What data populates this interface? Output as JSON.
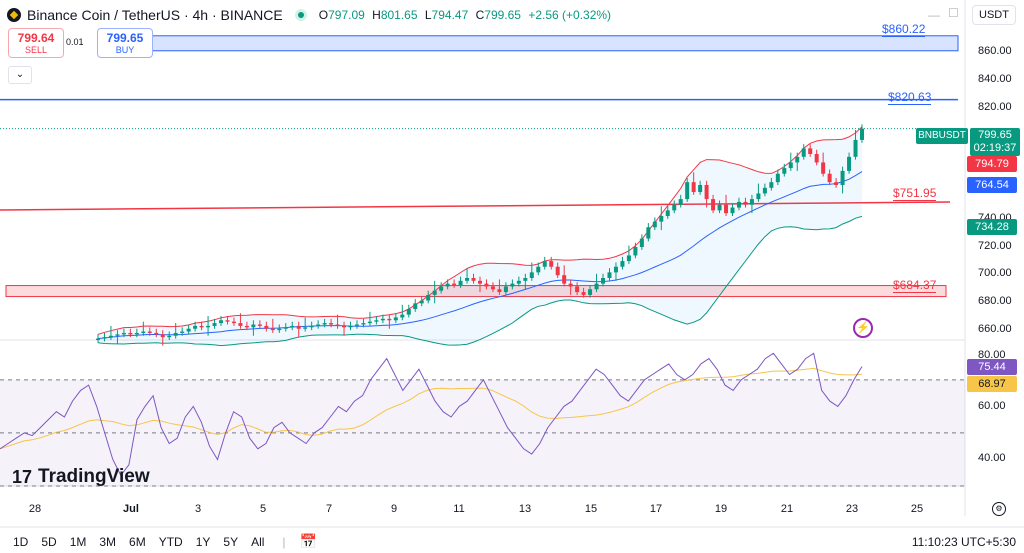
{
  "header": {
    "title": "Binance Coin / TetherUS · 4h · BINANCE",
    "ohlc": {
      "o_label": "O",
      "o": "797.09",
      "h_label": "H",
      "h": "801.65",
      "l_label": "L",
      "l": "794.47",
      "c_label": "C",
      "c": "799.65",
      "change": "+2.56 (+0.32%)"
    },
    "currency": "USDT"
  },
  "trade": {
    "sell_price": "799.64",
    "sell_label": "SELL",
    "spread": "0.01",
    "buy_price": "799.65",
    "buy_label": "BUY"
  },
  "price_axis": {
    "ticks": [
      "860.00",
      "840.00",
      "820.00",
      "800.00",
      "780.00",
      "760.00",
      "740.00",
      "720.00",
      "700.00",
      "680.00",
      "660.00"
    ],
    "symbol_badge": "BNBUSDT",
    "current_price": "799.65",
    "countdown": "02:19:37",
    "bb_upper": "794.79",
    "bb_mid": "764.54",
    "bb_lower": "734.28"
  },
  "levels": [
    {
      "label": "$860.22",
      "color": "#2962ff"
    },
    {
      "label": "$820.63",
      "color": "#2962ff"
    },
    {
      "label": "$751.95",
      "color": "#f23645"
    },
    {
      "label": "$684.37",
      "color": "#f23645"
    }
  ],
  "rsi_axis": {
    "ticks": [
      "80.00",
      "60.00",
      "40.00"
    ],
    "rsi_value": "75.44",
    "rsi_ma": "68.97"
  },
  "time_axis": [
    "28",
    "Jul",
    "3",
    "5",
    "7",
    "9",
    "11",
    "13",
    "15",
    "17",
    "19",
    "21",
    "23",
    "25"
  ],
  "bottom_bar": {
    "timeframes": [
      "1D",
      "5D",
      "1M",
      "3M",
      "6M",
      "YTD",
      "1Y",
      "5Y",
      "All"
    ],
    "clock": "11:10:23 UTC+5:30"
  },
  "logo": {
    "text": "TradingView"
  },
  "colors": {
    "up": "#089981",
    "down": "#f23645",
    "accent": "#2962ff",
    "rsi": "#7e57c2",
    "rsi_ma": "#f7c548"
  },
  "chart_data": {
    "type": "candlestick",
    "symbol": "BNBUSDT",
    "interval": "4h",
    "ylim": [
      650,
      870
    ],
    "rsi_ylim": [
      30,
      85
    ],
    "closes": [
      651,
      652,
      653,
      654,
      655,
      654,
      655,
      656,
      655,
      654,
      652,
      653,
      655,
      656,
      658,
      660,
      659,
      660,
      662,
      664,
      663,
      662,
      660,
      659,
      661,
      660,
      658,
      657,
      658,
      659,
      660,
      658,
      659,
      660,
      661,
      662,
      661,
      660,
      659,
      660,
      661,
      662,
      663,
      664,
      665,
      664,
      666,
      668,
      672,
      676,
      678,
      682,
      685,
      688,
      690,
      689,
      692,
      694,
      692,
      690,
      688,
      686,
      684,
      688,
      690,
      692,
      694,
      698,
      702,
      706,
      702,
      696,
      690,
      688,
      684,
      682,
      686,
      690,
      694,
      698,
      702,
      706,
      710,
      716,
      722,
      730,
      734,
      738,
      742,
      746,
      750,
      762,
      755,
      760,
      750,
      742,
      746,
      740,
      744,
      748,
      746,
      750,
      754,
      758,
      762,
      768,
      772,
      776,
      780,
      786,
      782,
      776,
      768,
      762,
      760,
      770,
      780,
      792,
      800
    ],
    "rsi": [
      44,
      46,
      48,
      50,
      49,
      52,
      55,
      58,
      56,
      62,
      66,
      68,
      60,
      50,
      40,
      34,
      38,
      55,
      60,
      64,
      52,
      46,
      48,
      56,
      60,
      54,
      45,
      40,
      50,
      58,
      56,
      48,
      44,
      46,
      52,
      54,
      50,
      48,
      46,
      50,
      52,
      56,
      60,
      58,
      62,
      64,
      70,
      74,
      78,
      72,
      66,
      70,
      74,
      68,
      62,
      58,
      56,
      60,
      62,
      66,
      70,
      64,
      58,
      52,
      48,
      44,
      42,
      46,
      52,
      56,
      60,
      62,
      66,
      70,
      74,
      72,
      68,
      64,
      62,
      66,
      70,
      72,
      74,
      76,
      72,
      70,
      72,
      76,
      78,
      74,
      68,
      66,
      70,
      72,
      74,
      78,
      80,
      76,
      72,
      74,
      78,
      80,
      66,
      62,
      60,
      64,
      70,
      75
    ]
  }
}
